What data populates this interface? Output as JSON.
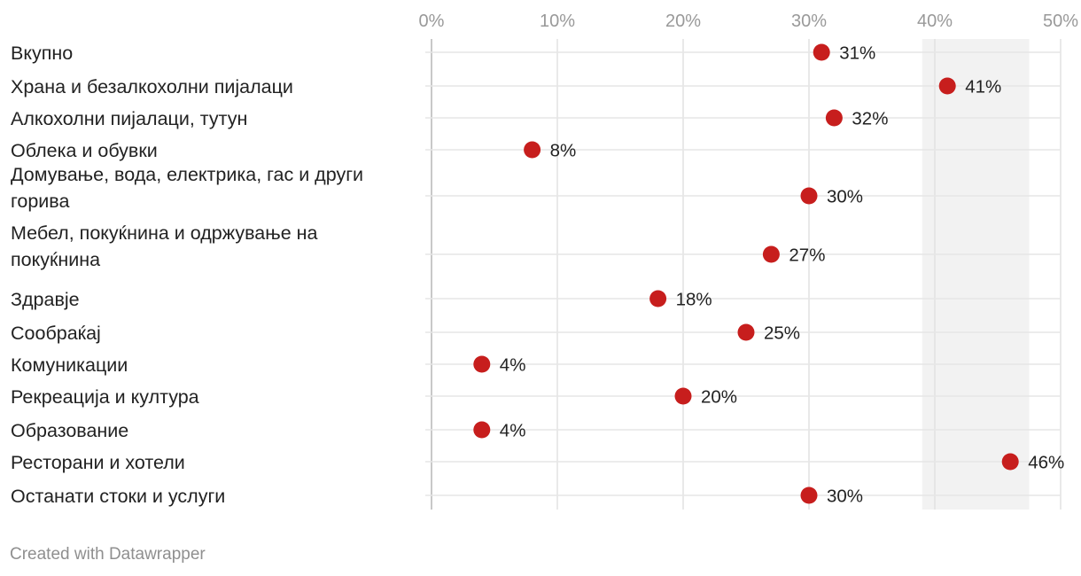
{
  "chart_data": {
    "type": "scatter",
    "subtype": "dot-plot",
    "xlim": [
      0,
      50
    ],
    "x_ticks": [
      0,
      10,
      20,
      30,
      40,
      50
    ],
    "x_tick_labels": [
      "0%",
      "10%",
      "20%",
      "30%",
      "40%",
      "50%"
    ],
    "highlight_range": [
      39,
      47.5
    ],
    "grid": true,
    "colors": {
      "dot": "#c71e1d",
      "highlight": "#f2f2f2"
    },
    "rows": [
      {
        "label": [
          "Вкупно"
        ],
        "value": 31,
        "value_label": "31%"
      },
      {
        "label": [
          "Храна и безалкохолни пијалаци"
        ],
        "value": 41,
        "value_label": "41%"
      },
      {
        "label": [
          "Алкохолни пијалаци, тутун"
        ],
        "value": 32,
        "value_label": "32%"
      },
      {
        "label": [
          "Облека и обувки"
        ],
        "value": 8,
        "value_label": "8%"
      },
      {
        "label": [
          "Домување, вода, електрика, гас и други",
          "горива"
        ],
        "value": 30,
        "value_label": "30%"
      },
      {
        "label": [
          "Мебел, покуќнина и одржување на",
          "покуќнина"
        ],
        "value": 27,
        "value_label": "27%"
      },
      {
        "label": [
          "Здравје"
        ],
        "value": 18,
        "value_label": "18%"
      },
      {
        "label": [
          "Сообраќај"
        ],
        "value": 25,
        "value_label": "25%"
      },
      {
        "label": [
          "Комуникации"
        ],
        "value": 4,
        "value_label": "4%"
      },
      {
        "label": [
          "Рекреација и култура"
        ],
        "value": 20,
        "value_label": "20%"
      },
      {
        "label": [
          "Образование"
        ],
        "value": 4,
        "value_label": "4%"
      },
      {
        "label": [
          "Ресторани и хотели"
        ],
        "value": 46,
        "value_label": "46%"
      },
      {
        "label": [
          "Останати стоки и услуги"
        ],
        "value": 30,
        "value_label": "30%"
      }
    ]
  },
  "footer": {
    "credit": "Created with Datawrapper"
  }
}
